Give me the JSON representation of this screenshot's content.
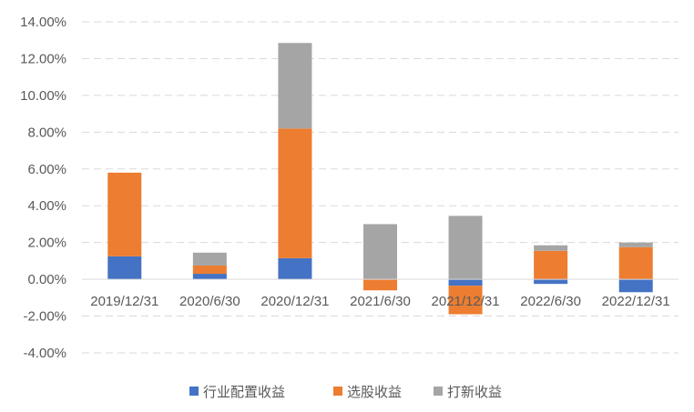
{
  "chart_data": {
    "type": "bar",
    "stacked": true,
    "categories": [
      "2019/12/31",
      "2020/6/30",
      "2020/12/31",
      "2021/6/30",
      "2021/12/31",
      "2022/6/30",
      "2022/12/31"
    ],
    "series": [
      {
        "name": "行业配置收益",
        "color": "#4472C4",
        "values": [
          1.25,
          0.3,
          1.15,
          0.0,
          -0.35,
          -0.25,
          -0.7
        ]
      },
      {
        "name": "选股收益",
        "color": "#ED7D31",
        "values": [
          4.55,
          0.45,
          7.05,
          -0.6,
          -1.55,
          1.55,
          1.75
        ]
      },
      {
        "name": "打新收益",
        "color": "#A5A5A5",
        "values": [
          0.0,
          0.7,
          4.65,
          3.0,
          3.45,
          0.3,
          0.25
        ]
      }
    ],
    "yticks": [
      "14.00%",
      "12.00%",
      "10.00%",
      "8.00%",
      "6.00%",
      "4.00%",
      "2.00%",
      "0.00%",
      "-2.00%",
      "-4.00%"
    ],
    "ylim": [
      -4,
      14
    ],
    "ystep": 2,
    "grid": true,
    "legend_position": "bottom"
  }
}
